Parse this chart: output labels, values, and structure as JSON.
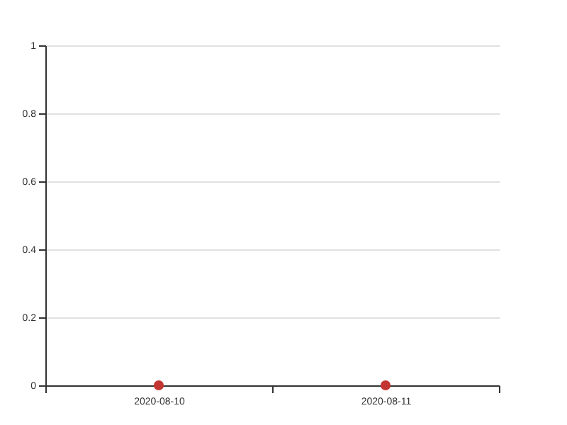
{
  "chart_data": {
    "type": "scatter",
    "categories": [
      "2020-08-10",
      "2020-08-11"
    ],
    "series": [
      {
        "color": "#c23531",
        "values": [
          0,
          0
        ]
      }
    ],
    "ylim": [
      0,
      1
    ],
    "yticks": [
      0,
      0.2,
      0.4,
      0.6,
      0.8,
      1
    ],
    "grid": "y",
    "marker": "circle"
  }
}
